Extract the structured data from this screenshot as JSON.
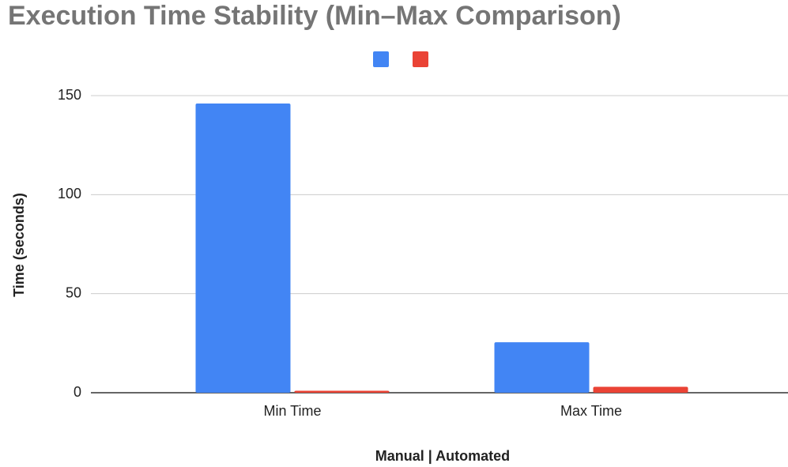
{
  "chart_data": {
    "type": "bar",
    "title": "Execution Time Stability (Min–Max Comparison)",
    "x_label": "Manual | Automated",
    "y_label": "Time (seconds)",
    "categories": [
      "Min Time",
      "Max Time"
    ],
    "series": [
      {
        "color": "#4285f4",
        "values": [
          146,
          25.5
        ]
      },
      {
        "color": "#ea4335",
        "values": [
          1,
          3
        ]
      }
    ],
    "ylim": [
      0,
      150
    ],
    "yticks": [
      0,
      50,
      100,
      150
    ],
    "grid": true,
    "legend": "top"
  }
}
